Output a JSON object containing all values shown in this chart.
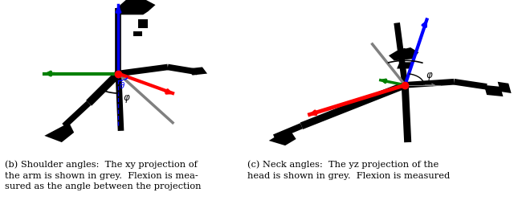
{
  "left_caption": "(b) Shoulder angles:  The xy projection of\nthe arm is shown in grey.  Flexion is mea-\nsured as the angle between the projection",
  "right_caption": "(c) Neck angles:  The yz projection of the\nhead is shown in grey.  Flexion is measured",
  "bg_color": "#ffffff",
  "fig_width": 6.4,
  "fig_height": 2.75,
  "dpi": 100,
  "caption_fontsize": 8.2,
  "caption_family": "serif",
  "lw_skel": 5.5,
  "lw_col": 2.5
}
